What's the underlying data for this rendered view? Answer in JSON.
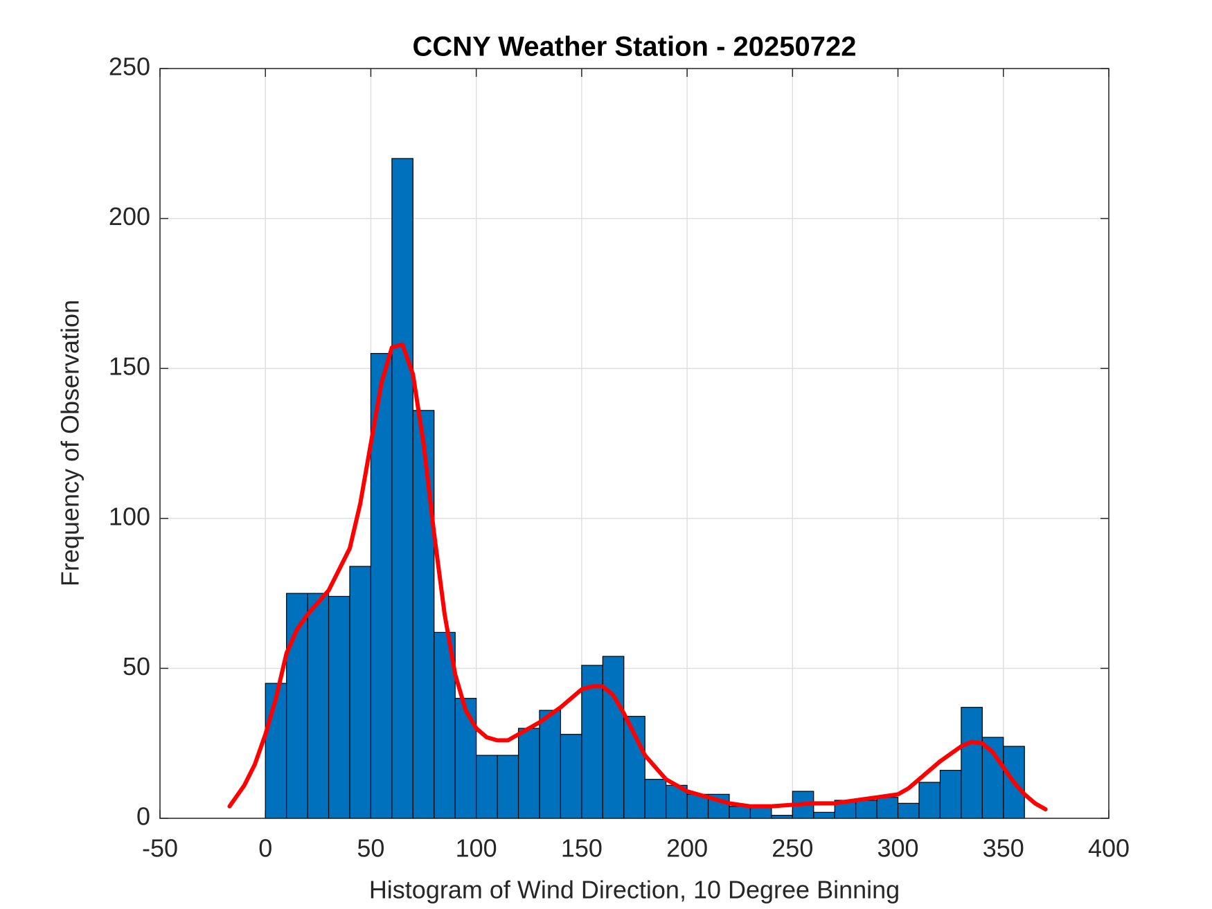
{
  "chart_data": {
    "type": "histogram",
    "title": "CCNY Weather Station - 20250722",
    "xlabel": "Histogram of Wind Direction, 10 Degree Binning",
    "ylabel": "Frequency of Observation",
    "bins": [
      0,
      10,
      20,
      30,
      40,
      50,
      60,
      70,
      80,
      90,
      100,
      110,
      120,
      130,
      140,
      150,
      160,
      170,
      180,
      190,
      200,
      210,
      220,
      230,
      240,
      250,
      260,
      270,
      280,
      290,
      300,
      310,
      320,
      330,
      340,
      350,
      360
    ],
    "counts": [
      45,
      75,
      75,
      74,
      84,
      155,
      220,
      136,
      62,
      40,
      21,
      21,
      30,
      36,
      28,
      51,
      54,
      34,
      13,
      11,
      8,
      8,
      4,
      4,
      1,
      9,
      2,
      6,
      6,
      7,
      5,
      12,
      16,
      37,
      27,
      24
    ],
    "color": "#0072bd",
    "curve": {
      "type": "line",
      "color": "#ff0000",
      "x": [
        -17,
        -10,
        -5,
        0,
        5,
        10,
        15,
        20,
        30,
        40,
        45,
        50,
        55,
        60,
        65,
        70,
        75,
        80,
        85,
        90,
        95,
        100,
        105,
        110,
        115,
        120,
        130,
        140,
        150,
        155,
        160,
        165,
        170,
        175,
        180,
        190,
        200,
        210,
        220,
        230,
        240,
        250,
        260,
        270,
        280,
        290,
        300,
        305,
        310,
        320,
        330,
        335,
        340,
        345,
        350,
        355,
        360,
        365,
        370
      ],
      "values": [
        4,
        11,
        18,
        28,
        40,
        55,
        63,
        68,
        76,
        90,
        105,
        125,
        145,
        157,
        158,
        148,
        125,
        95,
        68,
        48,
        36,
        30,
        27,
        26,
        26,
        28,
        32,
        37,
        43,
        44,
        44,
        41,
        35,
        28,
        21,
        13,
        9,
        7,
        5,
        4,
        4,
        4.5,
        5,
        5,
        6,
        7,
        8,
        10,
        13,
        19,
        24,
        25.5,
        25,
        22,
        17,
        12,
        8,
        5,
        3
      ]
    },
    "xlim": [
      -50,
      400
    ],
    "xticks": [
      -50,
      0,
      50,
      100,
      150,
      200,
      250,
      300,
      350,
      400
    ],
    "ylim": [
      0,
      250
    ],
    "yticks": [
      0,
      50,
      100,
      150,
      200,
      250
    ],
    "grid": true
  }
}
